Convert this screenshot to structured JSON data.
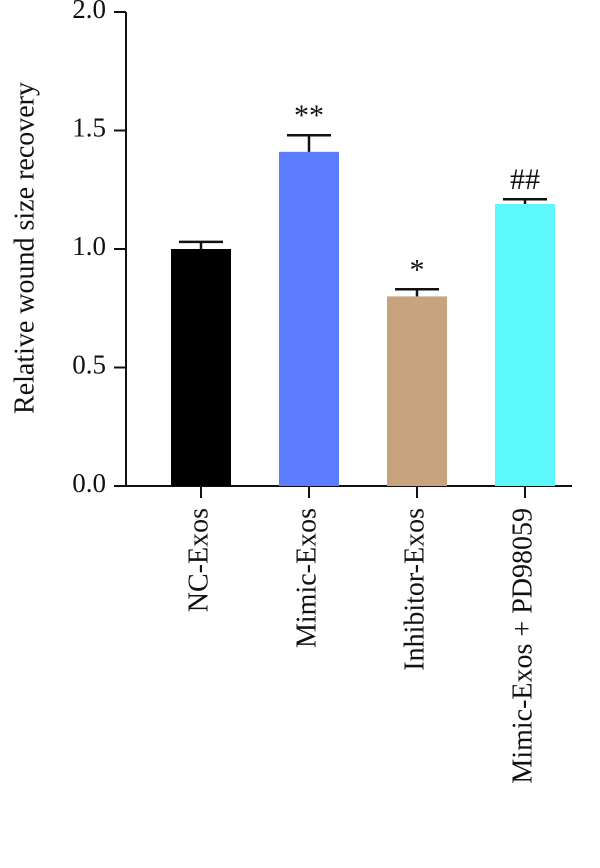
{
  "chart_data": {
    "type": "bar",
    "title": "",
    "xlabel": "",
    "ylabel": "Relative wound size recovery",
    "ylim": [
      0,
      2.0
    ],
    "yticks": [
      "0.0",
      "0.5",
      "1.0",
      "1.5",
      "2.0"
    ],
    "yticks_values": [
      0,
      0.5,
      1.0,
      1.5,
      2.0
    ],
    "grid": false,
    "legend": "none",
    "categories": [
      "NC-Exos",
      "Mimic-Exos",
      "Inhibitor-Exos",
      "Mimic-Exos + PD98059"
    ],
    "values": [
      1.0,
      1.41,
      0.8,
      1.19
    ],
    "error_upper": [
      0.03,
      0.07,
      0.03,
      0.02
    ],
    "significance": [
      "",
      "**",
      "*",
      "##"
    ],
    "colors": [
      "#000000",
      "#5b7cff",
      "#c8a47e",
      "#5cf8fc"
    ]
  }
}
